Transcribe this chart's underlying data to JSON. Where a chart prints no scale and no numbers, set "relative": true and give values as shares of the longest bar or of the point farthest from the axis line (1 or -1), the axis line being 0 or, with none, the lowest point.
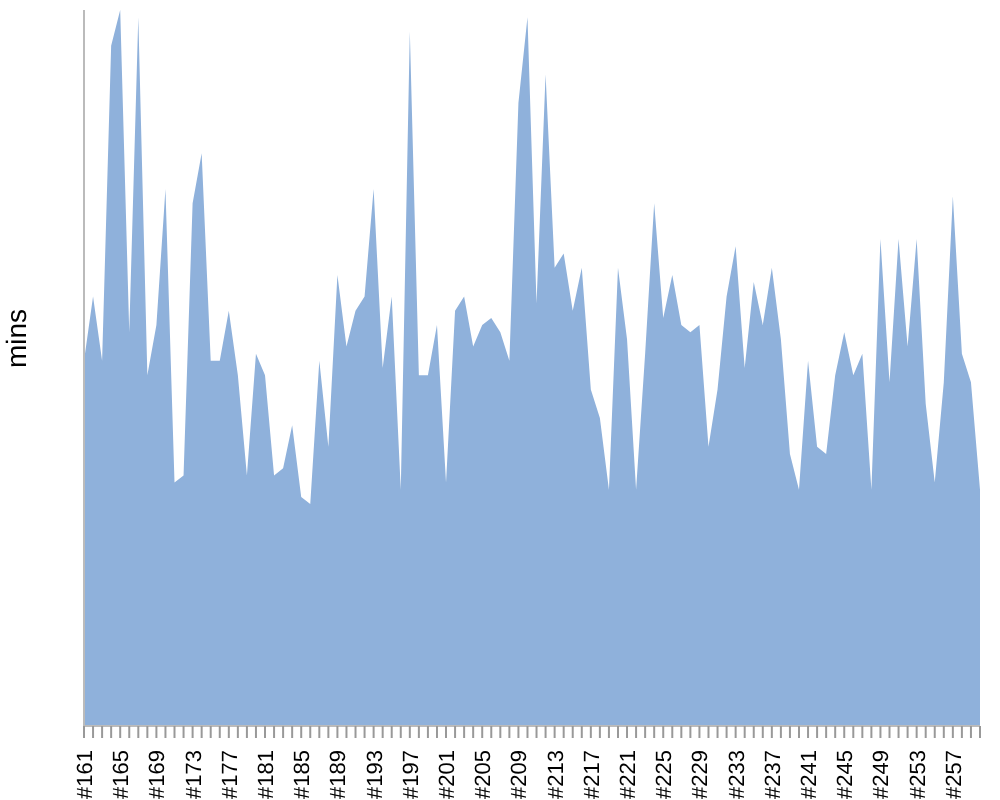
{
  "chart_data": {
    "type": "area",
    "ylabel": "mins",
    "relative": true,
    "color": "#8fb1db",
    "grid": false,
    "legend": false,
    "categories": [
      "#161",
      null,
      null,
      null,
      "#165",
      null,
      null,
      null,
      "#169",
      null,
      null,
      null,
      "#173",
      null,
      null,
      null,
      "#177",
      null,
      null,
      null,
      "#181",
      null,
      null,
      null,
      "#185",
      null,
      null,
      null,
      "#189",
      null,
      null,
      null,
      "#193",
      null,
      null,
      null,
      "#197",
      null,
      null,
      null,
      "#201",
      null,
      null,
      null,
      "#205",
      null,
      null,
      null,
      "#209",
      null,
      null,
      null,
      "#213",
      null,
      null,
      null,
      "#217",
      null,
      null,
      null,
      "#221",
      null,
      null,
      null,
      "#225",
      null,
      null,
      null,
      "#229",
      null,
      null,
      null,
      "#233",
      null,
      null,
      null,
      "#237",
      null,
      null,
      null,
      "#241",
      null,
      null,
      null,
      "#245",
      null,
      null,
      null,
      "#249",
      null,
      null,
      null,
      "#253",
      null,
      null,
      null,
      "#257",
      null,
      null,
      null
    ],
    "values": [
      0.51,
      0.6,
      0.51,
      0.95,
      1,
      0.55,
      0.99,
      0.49,
      0.56,
      0.75,
      0.34,
      0.35,
      0.73,
      0.8,
      0.51,
      0.51,
      0.58,
      0.49,
      0.35,
      0.52,
      0.49,
      0.35,
      0.36,
      0.42,
      0.32,
      0.31,
      0.51,
      0.39,
      0.63,
      0.53,
      0.58,
      0.6,
      0.75,
      0.5,
      0.6,
      0.33,
      0.97,
      0.49,
      0.49,
      0.56,
      0.34,
      0.58,
      0.6,
      0.53,
      0.56,
      0.57,
      0.55,
      0.51,
      0.87,
      0.99,
      0.59,
      0.91,
      0.64,
      0.66,
      0.58,
      0.64,
      0.47,
      0.43,
      0.33,
      0.64,
      0.54,
      0.33,
      0.52,
      0.73,
      0.57,
      0.63,
      0.56,
      0.55,
      0.56,
      0.39,
      0.47,
      0.6,
      0.67,
      0.5,
      0.62,
      0.56,
      0.64,
      0.54,
      0.38,
      0.33,
      0.51,
      0.39,
      0.38,
      0.49,
      0.55,
      0.49,
      0.52,
      0.33,
      0.68,
      0.48,
      0.68,
      0.53,
      0.68,
      0.45,
      0.34,
      0.48,
      0.74,
      0.52,
      0.48,
      0.33
    ]
  }
}
